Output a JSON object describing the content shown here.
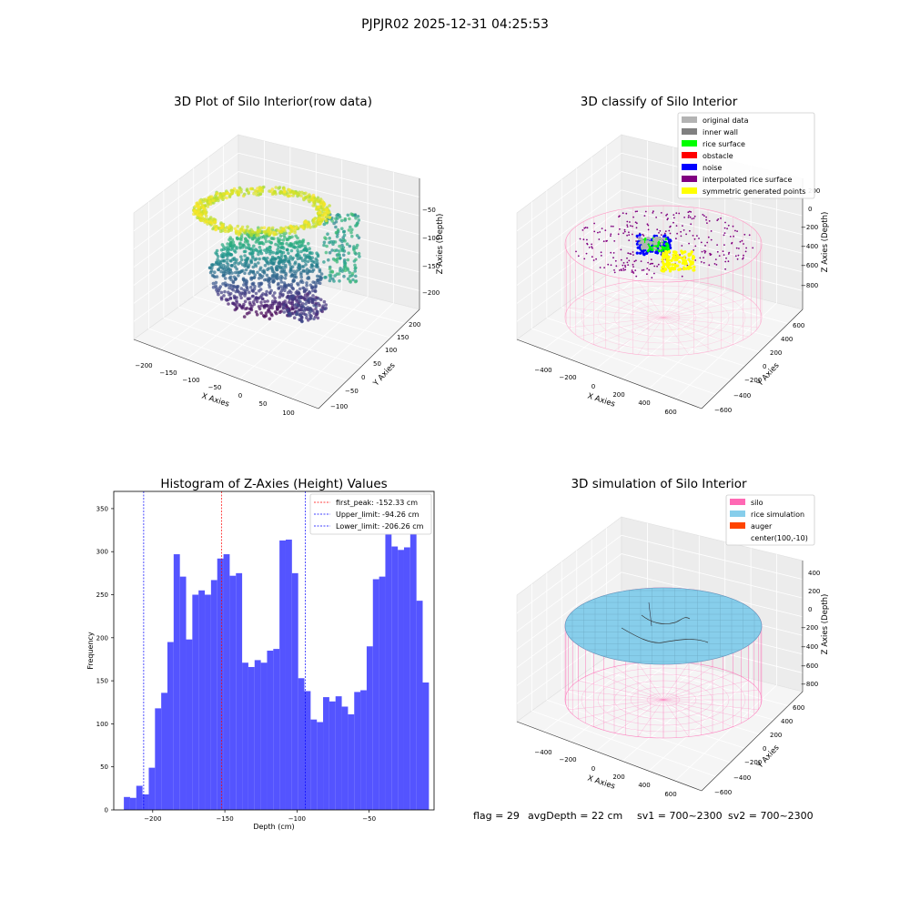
{
  "suptitle": "PJPJR02 2025-12-31 04:25:53",
  "status_line": {
    "flag": "flag = 29",
    "avg_depth": "avgDepth = 22 cm",
    "sv1": "sv1 = 700~2300",
    "sv2": "sv2 = 700~2300"
  },
  "colors": {
    "hist_bar": "#4b4bff",
    "silo": "#ff69b4",
    "rice_simulation": "#87ceeb",
    "auger": "#ff4500",
    "original_data": "#b3b3b3",
    "inner_wall": "#808080",
    "rice_surface": "#00ff00",
    "obstacle": "#ff0000",
    "noise": "#0000ff",
    "interpolated_rice_surface": "#800080",
    "symmetric_generated_points": "#ffff00",
    "first_peak_line": "#ff0000",
    "limit_line": "#0000ff"
  },
  "chart_data": [
    {
      "type": "scatter3d",
      "title": "3D Plot of Silo Interior(row data)",
      "xlabel": "X Axies",
      "ylabel": "Y Axies",
      "zlabel": "Z Axies (Depth)",
      "xticks": [
        "−200",
        "−150",
        "−100",
        "−50",
        "0",
        "50",
        "100"
      ],
      "yticks": [
        "−100",
        "−50",
        "0",
        "50",
        "100",
        "150",
        "200"
      ],
      "zticks": [
        "−50",
        "−100",
        "−150",
        "−200"
      ],
      "xlim": [
        -220,
        120
      ],
      "ylim": [
        -120,
        220
      ],
      "zlim": [
        -230,
        -20
      ],
      "colormap": "viridis"
    },
    {
      "type": "scatter3d",
      "title": "3D classify of Silo Interior",
      "xlabel": "X Axies",
      "ylabel": "Y Axies",
      "zlabel": "Z Axies (Depth)",
      "xticks": [
        "−400",
        "−200",
        "0",
        "200",
        "400",
        "600"
      ],
      "yticks": [
        "−600",
        "−400",
        "−200",
        "0",
        "200",
        "400",
        "600"
      ],
      "zticks": [
        "200",
        "0",
        "−200",
        "−400",
        "−600",
        "−800"
      ],
      "legend": [
        "original data",
        "inner wall",
        "rice surface",
        "obstacle",
        "noise",
        "interpolated rice surface",
        "symmetric generated points"
      ],
      "legend_placement": "top-right"
    },
    {
      "type": "bar",
      "title": "Histogram of Z-Axies (Height) Values",
      "xlabel": "Depth (cm)",
      "ylabel": "Frequency",
      "xlim": [
        -227,
        -5
      ],
      "ylim": [
        0,
        370
      ],
      "xticks": [
        -200,
        -150,
        -100,
        -50
      ],
      "yticks": [
        0,
        50,
        100,
        150,
        200,
        250,
        300,
        350
      ],
      "bin_start": -220.0,
      "bin_width": 4.315,
      "values": [
        15,
        14,
        28,
        18,
        49,
        118,
        136,
        195,
        297,
        271,
        198,
        250,
        255,
        250,
        267,
        292,
        297,
        272,
        275,
        171,
        166,
        174,
        171,
        185,
        187,
        313,
        314,
        275,
        153,
        138,
        105,
        102,
        131,
        126,
        132,
        120,
        111,
        137,
        139,
        190,
        268,
        271,
        320,
        306,
        302,
        305,
        321,
        243,
        148
      ],
      "vlines": [
        {
          "label": "first_peak: -152.33 cm",
          "x": -152.33,
          "color": "#ff0000"
        },
        {
          "label": "Upper_limit: -94.26 cm",
          "x": -94.26,
          "color": "#0000ff"
        },
        {
          "label": "Lower_limit: -206.26 cm",
          "x": -206.26,
          "color": "#0000ff"
        }
      ],
      "legend_placement": "top-right"
    },
    {
      "type": "surface3d",
      "title": "3D simulation of Silo Interior",
      "xlabel": "X Axies",
      "ylabel": "Y Axies",
      "zlabel": "Z Axies (Depth)",
      "xticks": [
        "−400",
        "−200",
        "0",
        "200",
        "400",
        "600"
      ],
      "yticks": [
        "−600",
        "−400",
        "−200",
        "0",
        "200",
        "400",
        "600"
      ],
      "zticks": [
        "400",
        "200",
        "0",
        "−200",
        "−400",
        "−600",
        "−800"
      ],
      "legend": [
        "silo",
        "rice simulation",
        "auger",
        "center(100,-10)"
      ],
      "legend_placement": "top-right"
    }
  ]
}
